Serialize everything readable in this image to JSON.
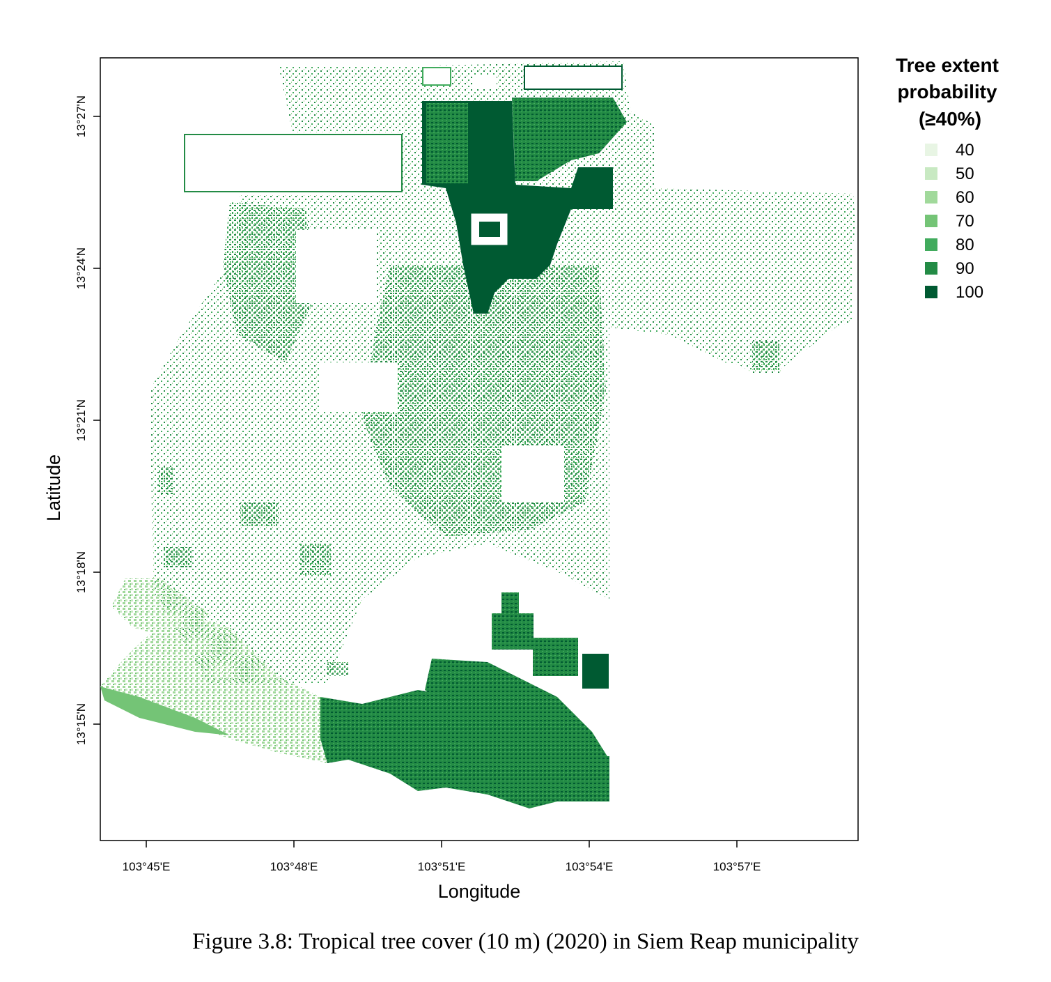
{
  "caption": "Figure 3.8: Tropical tree cover (10 m) (2020) in Siem Reap municipality",
  "map": {
    "xlabel": "Longitude",
    "ylabel": "Latitude",
    "x_ticks": [
      "103°45'E",
      "103°48'E",
      "103°51'E",
      "103°54'E",
      "103°57'E"
    ],
    "y_ticks": [
      "13°27'N",
      "13°24'N",
      "13°21'N",
      "13°18'N",
      "13°15'N"
    ]
  },
  "legend": {
    "title_lines": [
      "Tree extent",
      "probability",
      "(≥40%)"
    ],
    "items": [
      {
        "label": "40",
        "color": "#e8f5e4"
      },
      {
        "label": "50",
        "color": "#c8e9c2"
      },
      {
        "label": "60",
        "color": "#a1d99b"
      },
      {
        "label": "70",
        "color": "#74c476"
      },
      {
        "label": "80",
        "color": "#41ab5d"
      },
      {
        "label": "90",
        "color": "#238b45"
      },
      {
        "label": "100",
        "color": "#005a32"
      }
    ]
  }
}
